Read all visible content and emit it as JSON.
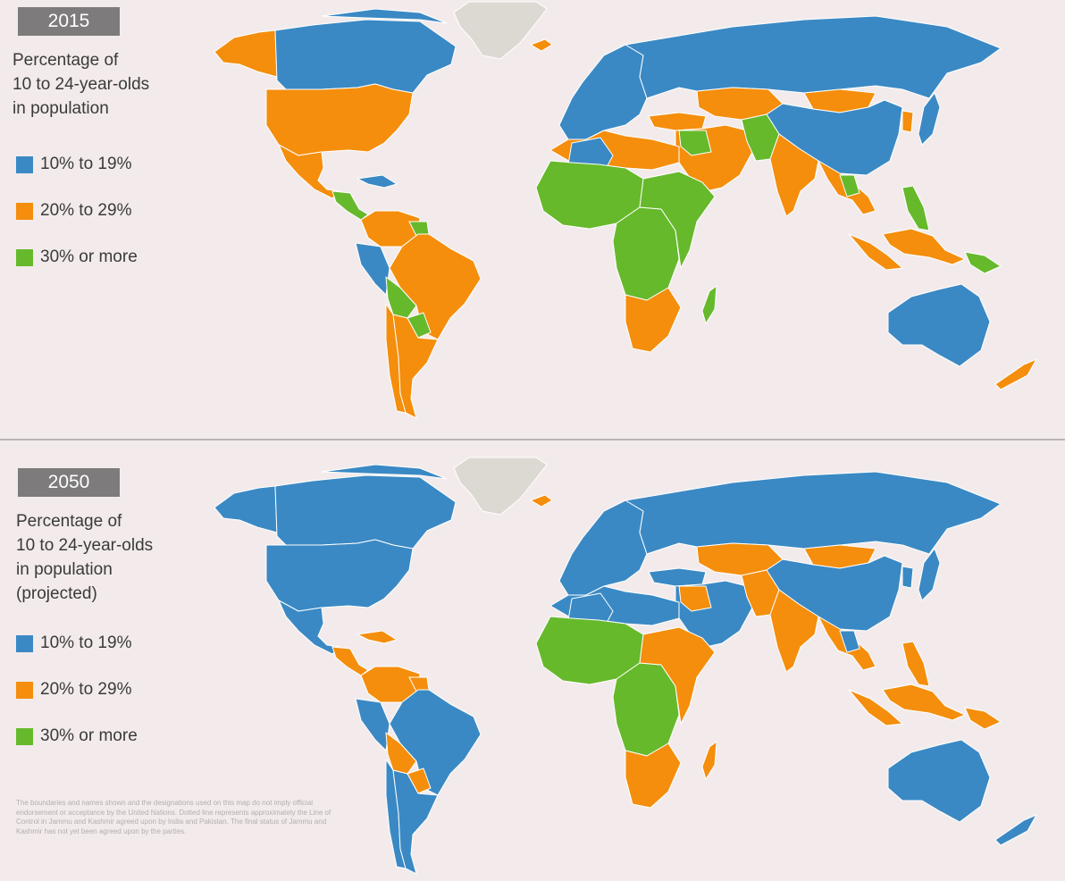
{
  "colors": {
    "blue": "#3a89c4",
    "orange": "#f48e0c",
    "green": "#66b92b",
    "greenland": "#dcd8d2",
    "background": "#f3ebeb"
  },
  "panels": [
    {
      "year": "2015",
      "subtitle_lines": [
        "Percentage of",
        "10 to 24-year-olds",
        "in population"
      ],
      "legend": [
        {
          "label": "10% to 19%",
          "color": "#3a89c4"
        },
        {
          "label": "20% to 29%",
          "color": "#f48e0c"
        },
        {
          "label": "30% or more",
          "color": "#66b92b"
        }
      ]
    },
    {
      "year": "2050",
      "subtitle_lines": [
        "Percentage of",
        "10 to 24-year-olds",
        "in population",
        "(projected)"
      ],
      "legend": [
        {
          "label": "10% to 19%",
          "color": "#3a89c4"
        },
        {
          "label": "20% to 29%",
          "color": "#f48e0c"
        },
        {
          "label": "30% or more",
          "color": "#66b92b"
        }
      ]
    }
  ],
  "disclaimer": "The boundaries and names shown and the designations used on this map do not imply official endorsement or acceptance by the United Nations. Dotted line represents approximately the Line of Control in Jammu and Kashmir agreed upon by India and Pakistan. The final status of Jammu and Kashmir has not yet been agreed upon by the parties.",
  "regions_2015": {
    "canada": "blue",
    "alaska": "orange",
    "usa": "orange",
    "mexico": "orange",
    "central_america": "green",
    "caribbean": "blue",
    "south_america_north": "orange",
    "peru": "blue",
    "bolivia": "green",
    "paraguay": "green",
    "brazil": "orange",
    "argentina": "orange",
    "chile": "orange",
    "guyana": "green",
    "greenland": "grey",
    "iceland": "orange",
    "europe": "blue",
    "russia": "blue",
    "china": "blue",
    "kazakhstan": "orange",
    "mongolia": "orange",
    "turkey": "orange",
    "middle_east": "orange",
    "iraq": "green",
    "afghanistan": "green",
    "india": "orange",
    "southeast_asia": "orange",
    "myanmar": "green",
    "philippines": "green",
    "indonesia": "orange",
    "png": "green",
    "japan": "blue",
    "korea": "orange",
    "north_africa": "orange",
    "algeria": "blue",
    "west_africa": "green",
    "central_africa": "green",
    "east_africa": "green",
    "southern_africa": "orange",
    "madagascar": "green",
    "australia": "blue",
    "new_zealand": "orange"
  },
  "regions_2050": {
    "canada": "blue",
    "alaska": "blue",
    "usa": "blue",
    "mexico": "blue",
    "central_america": "orange",
    "caribbean": "orange",
    "south_america_north": "orange",
    "peru": "blue",
    "bolivia": "orange",
    "paraguay": "orange",
    "brazil": "blue",
    "argentina": "blue",
    "chile": "blue",
    "guyana": "orange",
    "greenland": "grey",
    "iceland": "orange",
    "europe": "blue",
    "russia": "blue",
    "china": "blue",
    "kazakhstan": "orange",
    "mongolia": "orange",
    "turkey": "blue",
    "middle_east": "blue",
    "iraq": "orange",
    "afghanistan": "orange",
    "india": "orange",
    "southeast_asia": "orange",
    "myanmar": "blue",
    "philippines": "orange",
    "indonesia": "orange",
    "png": "orange",
    "japan": "blue",
    "korea": "blue",
    "north_africa": "blue",
    "algeria": "blue",
    "west_africa": "green",
    "central_africa": "green",
    "east_africa": "orange",
    "southern_africa": "orange",
    "madagascar": "orange",
    "australia": "blue",
    "new_zealand": "blue"
  }
}
